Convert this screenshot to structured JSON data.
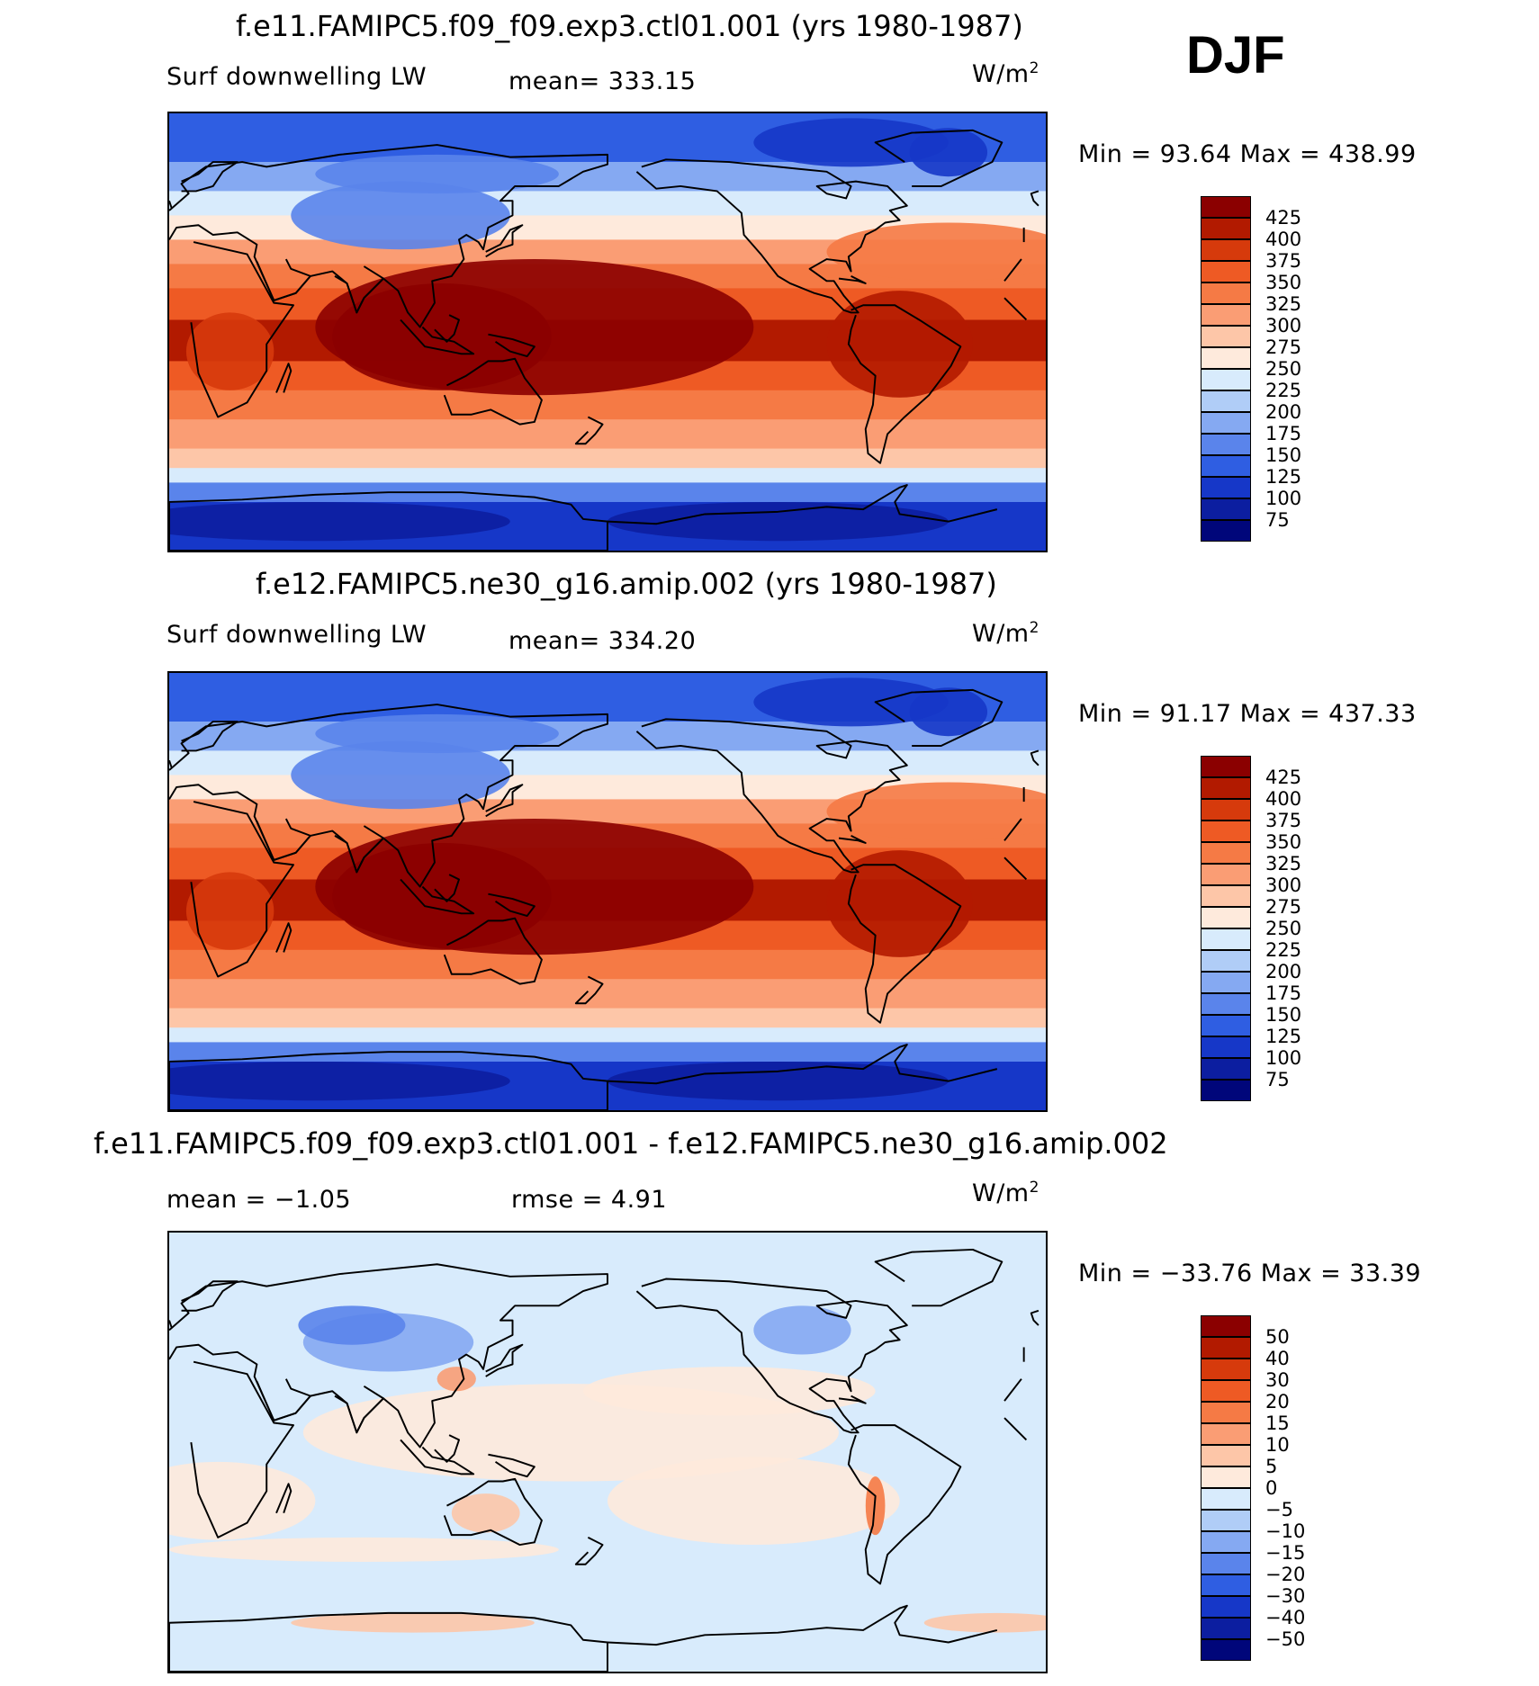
{
  "season": "DJF",
  "panels": [
    {
      "title": "f.e11.FAMIPC5.f09_f09.exp3.ctl01.001 (yrs 1980-1987)",
      "left_label": "Surf downwelling LW",
      "stat1": "mean=  333.15",
      "stat2": "",
      "unit": "W/m",
      "unit_sup": "2",
      "minmax": "Min =   93.64  Max  =  438.99",
      "palette": "abs",
      "min": 93.64,
      "max": 438.99
    },
    {
      "title": "f.e12.FAMIPC5.ne30_g16.amip.002 (yrs 1980-1987)",
      "left_label": "Surf downwelling LW",
      "stat1": "mean=  334.20",
      "stat2": "",
      "unit": "W/m",
      "unit_sup": "2",
      "minmax": "Min =   91.17  Max  =  437.33",
      "palette": "abs",
      "min": 91.17,
      "max": 437.33
    },
    {
      "title": "f.e11.FAMIPC5.f09_f09.exp3.ctl01.001 - f.e12.FAMIPC5.ne30_g16.amip.002",
      "left_label": "mean =   −1.05",
      "stat1": "rmse =     4.91",
      "stat2": "",
      "unit": "W/m",
      "unit_sup": "2",
      "minmax": "Min = −33.76  Max =    33.39",
      "palette": "diff",
      "min": -33.76,
      "max": 33.39
    }
  ],
  "colorbars": {
    "abs": {
      "labels": [
        "425",
        "400",
        "375",
        "350",
        "325",
        "300",
        "275",
        "250",
        "225",
        "200",
        "175",
        "150",
        "125",
        "100",
        "75"
      ],
      "colors": [
        "#8b0000",
        "#b21a00",
        "#d63a0c",
        "#ee5a24",
        "#f57a45",
        "#fa9d74",
        "#fdc6a8",
        "#feeadc",
        "#d8ebfc",
        "#b0cdf7",
        "#85a9f2",
        "#5a84eb",
        "#2f5ee2",
        "#1637c8",
        "#0c1ea0",
        "#00067a"
      ]
    },
    "diff": {
      "labels": [
        "50",
        "40",
        "30",
        "20",
        "15",
        "10",
        "5",
        "0",
        "−5",
        "−10",
        "−15",
        "−20",
        "−30",
        "−40",
        "−50"
      ],
      "colors": [
        "#8b0000",
        "#b21a00",
        "#d63a0c",
        "#ee5a24",
        "#f57a45",
        "#fa9d74",
        "#fdc6a8",
        "#feeadc",
        "#d8ebfc",
        "#b0cdf7",
        "#85a9f2",
        "#5a84eb",
        "#2f5ee2",
        "#1637c8",
        "#0c1ea0",
        "#00067a"
      ]
    }
  }
}
